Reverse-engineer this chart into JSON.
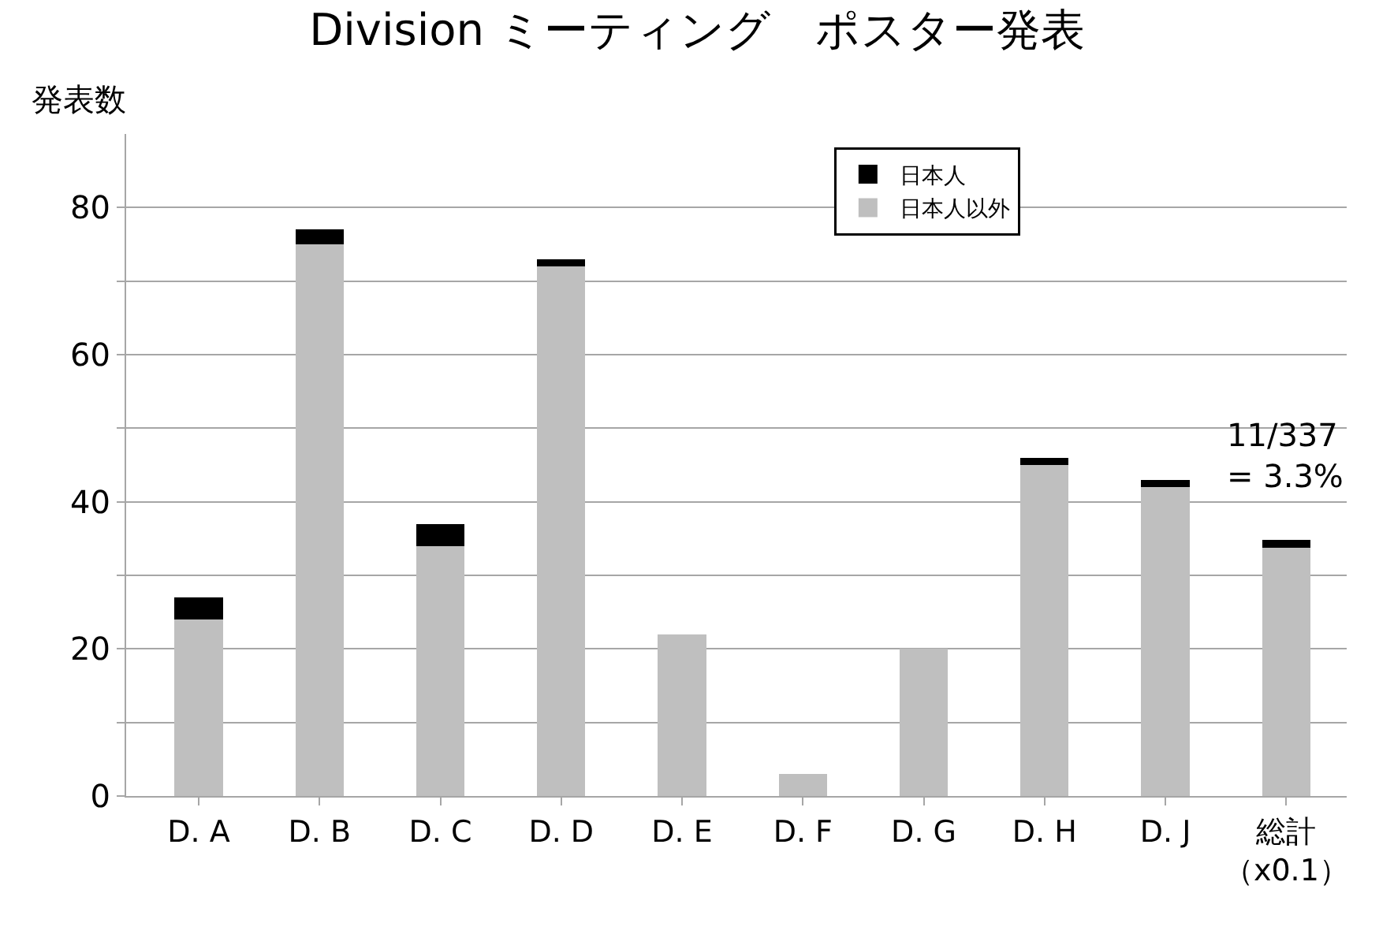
{
  "chart_data": {
    "type": "bar",
    "title": "Division ミーティング　ポスター発表",
    "ylabel": "発表数",
    "categories": [
      "D. A",
      "D. B",
      "D. C",
      "D. D",
      "D. E",
      "D. F",
      "D. G",
      "D. H",
      "D. J",
      "総計（x0.1）"
    ],
    "stacked": true,
    "series": [
      {
        "name": "日本人以外",
        "color": "#bfbfbf",
        "values": [
          24,
          75,
          34,
          72,
          22,
          3,
          20,
          45,
          42,
          33.7
        ]
      },
      {
        "name": "日本人",
        "color": "#000000",
        "values": [
          3,
          2,
          3,
          1,
          0,
          0,
          0,
          1,
          1,
          1.1
        ]
      }
    ],
    "ylim": [
      0,
      90
    ],
    "yticks": [
      0,
      {
        "value": 10,
        "label": null
      },
      20,
      {
        "value": 30,
        "label": null
      },
      40,
      {
        "value": 50,
        "label": null
      },
      60,
      {
        "value": 70,
        "label": null
      },
      80
    ],
    "grid": "y",
    "legend": "top right",
    "annotations": [
      "11/337\n= 3.3%"
    ]
  }
}
